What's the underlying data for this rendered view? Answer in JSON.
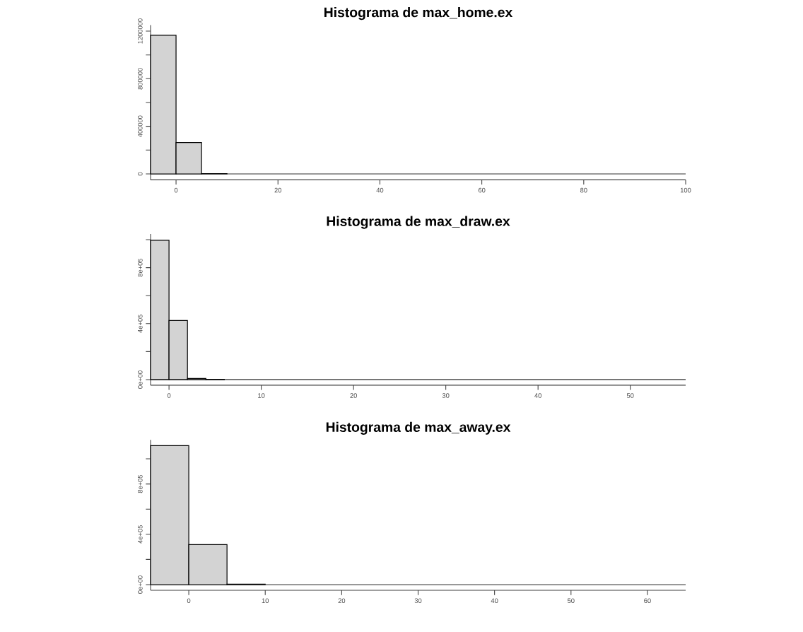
{
  "chart_data": [
    {
      "type": "histogram",
      "title": "Histograma de  max_home.ex",
      "color": "#d3d3d3",
      "bins": [
        -5,
        0,
        5,
        10,
        15,
        20,
        25,
        30,
        35,
        40,
        45,
        50,
        55,
        60,
        65,
        70,
        75,
        80,
        85,
        90,
        95,
        100
      ],
      "values": [
        1165000,
        263000,
        3000,
        0,
        0,
        0,
        0,
        0,
        0,
        0,
        0,
        0,
        0,
        0,
        0,
        0,
        0,
        0,
        0,
        0,
        0
      ],
      "xlim": [
        -5,
        100
      ],
      "ylim": [
        -50000,
        1250000
      ],
      "ref_lines": [
        {
          "axis": "y",
          "value": 0
        }
      ],
      "xticks": [
        0,
        20,
        40,
        60,
        80,
        100
      ],
      "yticks": [
        0,
        {
          "value": 200000,
          "label": null
        },
        400000,
        {
          "value": 600000,
          "label": null
        },
        800000,
        {
          "value": 1000000,
          "label": null
        },
        1200000
      ]
    },
    {
      "type": "histogram",
      "title": "Histograma de  max_draw.ex",
      "color": "#d3d3d3",
      "bins": [
        -2,
        0,
        2,
        4,
        6,
        8,
        10,
        12,
        14,
        16,
        18,
        20,
        22,
        24,
        26,
        28,
        30,
        32,
        34,
        36,
        38,
        40,
        42,
        44,
        46,
        48,
        50,
        52,
        54,
        56
      ],
      "values": [
        996000,
        422000,
        8000,
        2000,
        0,
        0,
        0,
        0,
        0,
        0,
        0,
        0,
        0,
        0,
        0,
        0,
        0,
        0,
        0,
        0,
        0,
        0,
        0,
        0,
        0,
        0,
        0,
        0,
        0
      ],
      "xlim": [
        -2,
        56
      ],
      "ylim": [
        -40000,
        1040000
      ],
      "ref_lines": [
        {
          "axis": "y",
          "value": 0
        }
      ],
      "xticks": [
        0,
        10,
        20,
        30,
        40,
        50
      ],
      "yticks": [
        {
          "value": 0,
          "label": "0e+00"
        },
        {
          "value": 200000,
          "label": null
        },
        {
          "value": 400000,
          "label": "4e+05"
        },
        {
          "value": 600000,
          "label": null
        },
        {
          "value": 800000,
          "label": "8e+05"
        },
        {
          "value": 1000000,
          "label": null
        }
      ]
    },
    {
      "type": "histogram",
      "title": "Histograma de  max_away.ex",
      "color": "#d3d3d3",
      "bins": [
        -5,
        0,
        5,
        10,
        15,
        20,
        25,
        30,
        35,
        40,
        45,
        50,
        55,
        60,
        65
      ],
      "values": [
        1105000,
        318000,
        3000,
        0,
        0,
        0,
        0,
        0,
        0,
        0,
        0,
        0,
        0,
        0
      ],
      "xlim": [
        -5,
        65
      ],
      "ylim": [
        -45000,
        1150000
      ],
      "ref_lines": [
        {
          "axis": "y",
          "value": 0
        }
      ],
      "xticks": [
        0,
        10,
        20,
        30,
        40,
        50,
        60
      ],
      "yticks": [
        {
          "value": 0,
          "label": "0e+00"
        },
        {
          "value": 200000,
          "label": null
        },
        {
          "value": 400000,
          "label": "4e+05"
        },
        {
          "value": 600000,
          "label": null
        },
        {
          "value": 800000,
          "label": "8e+05"
        },
        {
          "value": 1000000,
          "label": null
        }
      ]
    }
  ]
}
